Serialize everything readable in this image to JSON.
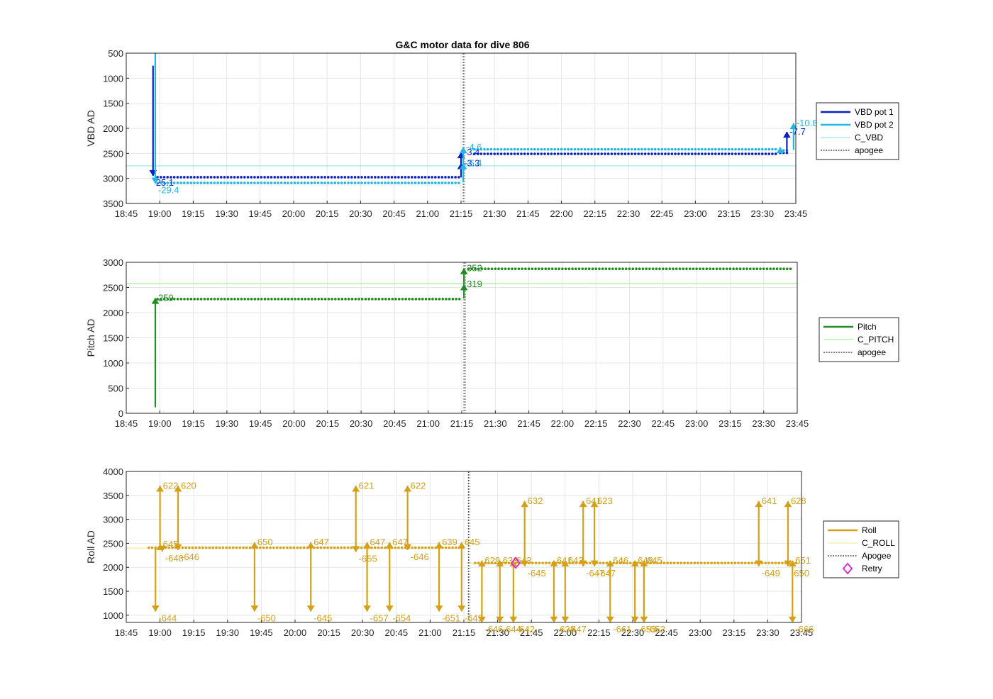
{
  "figure": {
    "title": "G&C motor data for dive 806"
  },
  "colors": {
    "vbd1": "#0a1fc4",
    "vbd2": "#1fb8e6",
    "c_vbd": "#7ee0ea",
    "pitch": "#228b22",
    "c_pitch": "#90e890",
    "roll": "#d4a017",
    "c_roll": "#f2e88a",
    "apogee": "#555555",
    "retry": "#e01ee0",
    "grid": "#e6e6e6"
  },
  "chart_data": [
    {
      "type": "line",
      "ylabel": "VBD AD",
      "ylim": [
        500,
        3500
      ],
      "y_reversed": true,
      "yticks": [
        500,
        1000,
        1500,
        2000,
        2500,
        3000,
        3500
      ],
      "xlim": [
        "18:45",
        "23:45"
      ],
      "xticks": [
        "18:45",
        "19:00",
        "19:15",
        "19:30",
        "19:45",
        "20:00",
        "20:15",
        "20:30",
        "20:45",
        "21:00",
        "21:15",
        "21:30",
        "21:45",
        "22:00",
        "22:15",
        "22:30",
        "22:45",
        "23:00",
        "23:15",
        "23:30",
        "23:45"
      ],
      "legend": {
        "position": "right",
        "entries": [
          {
            "label": "VBD pot 1",
            "style": "thick",
            "color": "#0a1fc4"
          },
          {
            "label": "VBD pot 2",
            "style": "thick",
            "color": "#1fb8e6"
          },
          {
            "label": "C_VBD",
            "style": "thin",
            "color": "#7ee0ea"
          },
          {
            "label": "apogee",
            "style": "dotted",
            "color": "#555555"
          }
        ]
      },
      "reference_lines": [
        {
          "name": "C_VBD",
          "y": 2750
        }
      ],
      "apogee": "21:16",
      "series": [
        {
          "name": "VBD pot 1",
          "color": "#0a1fc4",
          "segments": [
            {
              "start": "18:59",
              "end": "21:15",
              "y": 2975
            },
            {
              "start": "21:21",
              "end": "23:37",
              "y": 2510
            },
            {
              "start": "23:38",
              "end": "23:42",
              "y": 2490
            }
          ]
        },
        {
          "name": "VBD pot 2",
          "color": "#1fb8e6",
          "segments": [
            {
              "start": "18:59",
              "end": "21:15",
              "y": 3090
            },
            {
              "start": "21:21",
              "end": "23:37",
              "y": 2420
            },
            {
              "start": "23:38",
              "end": "23:42",
              "y": 2440
            }
          ]
        }
      ],
      "moves": [
        {
          "series": "VBD pot 1",
          "time": "18:57",
          "from": 750,
          "to": 2950,
          "label": "25.1"
        },
        {
          "series": "VBD pot 2",
          "time": "18:58",
          "from": 500,
          "to": 3100,
          "label": "-29.4"
        },
        {
          "series": "VBD pot 1",
          "time": "21:15",
          "from": 2980,
          "to": 2700,
          "label": "-3.3"
        },
        {
          "series": "VBD pot 1",
          "time": "21:15",
          "from": 2700,
          "to": 2480,
          "label": "-3.4"
        },
        {
          "series": "VBD pot 2",
          "time": "21:16",
          "from": 3080,
          "to": 2700,
          "label": "-5.4"
        },
        {
          "series": "VBD pot 2",
          "time": "21:16",
          "from": 2700,
          "to": 2380,
          "label": "-4.6"
        },
        {
          "series": "VBD pot 1",
          "time": "23:41",
          "from": 2500,
          "to": 2070,
          "label": "-7.7"
        },
        {
          "series": "VBD pot 2",
          "time": "23:38",
          "from": 2490,
          "to": 2380,
          "label": ""
        },
        {
          "series": "VBD pot 2",
          "time": "23:44",
          "from": 2430,
          "to": 1900,
          "label": "-10.8"
        }
      ]
    },
    {
      "type": "line",
      "ylabel": "Pitch AD",
      "ylim": [
        0,
        3000
      ],
      "yticks": [
        0,
        500,
        1000,
        1500,
        2000,
        2500,
        3000
      ],
      "xlim": [
        "18:45",
        "23:45"
      ],
      "xticks": [
        "18:45",
        "19:00",
        "19:15",
        "19:30",
        "19:45",
        "20:00",
        "20:15",
        "20:30",
        "20:45",
        "21:00",
        "21:15",
        "21:30",
        "21:45",
        "22:00",
        "22:15",
        "22:30",
        "22:45",
        "23:00",
        "23:15",
        "23:30",
        "23:45"
      ],
      "legend": {
        "position": "right",
        "entries": [
          {
            "label": "Pitch",
            "style": "thick",
            "color": "#228b22"
          },
          {
            "label": "C_PITCH",
            "style": "thin",
            "color": "#90e890"
          },
          {
            "label": "apogee",
            "style": "dotted",
            "color": "#555555"
          }
        ]
      },
      "reference_lines": [
        {
          "name": "C_PITCH",
          "y": 2580
        }
      ],
      "apogee": "21:16",
      "series": [
        {
          "name": "Pitch",
          "color": "#228b22",
          "segments": [
            {
              "start": "18:59",
              "end": "21:15",
              "y": 2270
            },
            {
              "start": "21:18",
              "end": "23:42",
              "y": 2870
            }
          ]
        }
      ],
      "moves": [
        {
          "series": "Pitch",
          "time": "18:58",
          "from": 120,
          "to": 2290,
          "label": "259"
        },
        {
          "series": "Pitch",
          "time": "21:16",
          "from": 2280,
          "to": 2560,
          "label": "319"
        },
        {
          "series": "Pitch",
          "time": "21:16",
          "from": 2560,
          "to": 2880,
          "label": "352"
        }
      ]
    },
    {
      "type": "line",
      "ylabel": "Roll AD",
      "ylim": [
        850,
        4000
      ],
      "yticks": [
        1000,
        1500,
        2000,
        2500,
        3000,
        3500,
        4000
      ],
      "xlim": [
        "18:45",
        "23:45"
      ],
      "xticks": [
        "18:45",
        "19:00",
        "19:15",
        "19:30",
        "19:45",
        "20:00",
        "20:15",
        "20:30",
        "20:45",
        "21:00",
        "21:15",
        "21:30",
        "21:45",
        "22:00",
        "22:15",
        "22:30",
        "22:45",
        "23:00",
        "23:15",
        "23:30",
        "23:45"
      ],
      "legend": {
        "position": "right",
        "entries": [
          {
            "label": "Roll",
            "style": "thick",
            "color": "#d4a017"
          },
          {
            "label": "C_ROLL",
            "style": "thin",
            "color": "#f2e88a"
          },
          {
            "label": "Apogee",
            "style": "dotted",
            "color": "#555555"
          },
          {
            "label": "Retry",
            "style": "diamond",
            "color": "#e01ee0"
          }
        ]
      },
      "reference_segments": [
        {
          "name": "C_ROLL",
          "start": "18:45",
          "end": "21:16",
          "y": 2400
        },
        {
          "name": "C_ROLL",
          "start": "21:16",
          "end": "23:45",
          "y": 2090
        }
      ],
      "apogee": "21:17",
      "series": [
        {
          "name": "Roll",
          "color": "#d4a017",
          "segments": [
            {
              "start": "18:55",
              "end": "21:15",
              "y": 2410
            },
            {
              "start": "21:20",
              "end": "23:43",
              "y": 2090
            }
          ]
        }
      ],
      "retry": [
        {
          "time": "21:38",
          "y": 2090
        }
      ],
      "moves": [
        {
          "time": "18:58",
          "from": 2400,
          "to": 1080,
          "label": "-644",
          "lpos": "end"
        },
        {
          "time": "19:00",
          "from": 2400,
          "to": 3700,
          "label": "622",
          "lpos": "end"
        },
        {
          "time": "19:00",
          "from": 2400,
          "to": 2480,
          "label": "645",
          "lpos": "end"
        },
        {
          "time": "19:01",
          "from": 2400,
          "to": 2330,
          "label": "-648",
          "lpos": "end"
        },
        {
          "time": "19:08",
          "from": 2420,
          "to": 3700,
          "label": "620",
          "lpos": "end"
        },
        {
          "time": "19:08",
          "from": 2420,
          "to": 2360,
          "label": "-646",
          "lpos": "end"
        },
        {
          "time": "19:42",
          "from": 2420,
          "to": 1080,
          "label": "-650",
          "lpos": "end"
        },
        {
          "time": "19:42",
          "from": 2420,
          "to": 2520,
          "label": "650",
          "lpos": "end"
        },
        {
          "time": "20:07",
          "from": 2420,
          "to": 1080,
          "label": "-645",
          "lpos": "end"
        },
        {
          "time": "20:07",
          "from": 2420,
          "to": 2520,
          "label": "647",
          "lpos": "end"
        },
        {
          "time": "20:27",
          "from": 2420,
          "to": 3700,
          "label": "621",
          "lpos": "end"
        },
        {
          "time": "20:27",
          "from": 2420,
          "to": 2320,
          "label": "-655",
          "lpos": "end"
        },
        {
          "time": "20:32",
          "from": 2420,
          "to": 1080,
          "label": "-657",
          "lpos": "end"
        },
        {
          "time": "20:32",
          "from": 2420,
          "to": 2520,
          "label": "647",
          "lpos": "end"
        },
        {
          "time": "20:42",
          "from": 2420,
          "to": 1080,
          "label": "-654",
          "lpos": "end"
        },
        {
          "time": "20:42",
          "from": 2420,
          "to": 2520,
          "label": "647",
          "lpos": "end"
        },
        {
          "time": "20:50",
          "from": 2420,
          "to": 3700,
          "label": "622",
          "lpos": "end"
        },
        {
          "time": "20:50",
          "from": 2420,
          "to": 2360,
          "label": "-646",
          "lpos": "end"
        },
        {
          "time": "21:04",
          "from": 2420,
          "to": 1080,
          "label": "-651",
          "lpos": "end"
        },
        {
          "time": "21:04",
          "from": 2420,
          "to": 2520,
          "label": "639",
          "lpos": "end"
        },
        {
          "time": "21:14",
          "from": 2420,
          "to": 1080,
          "label": "-645",
          "lpos": "end"
        },
        {
          "time": "21:14",
          "from": 2420,
          "to": 2520,
          "label": "645",
          "lpos": "end"
        },
        {
          "time": "21:23",
          "from": 2090,
          "to": 850,
          "label": "-646",
          "lpos": "end"
        },
        {
          "time": "21:23",
          "from": 2090,
          "to": 2140,
          "label": "629",
          "lpos": "end"
        },
        {
          "time": "21:31",
          "from": 2090,
          "to": 850,
          "label": "-644",
          "lpos": "end"
        },
        {
          "time": "21:31",
          "from": 2090,
          "to": 2140,
          "label": "633",
          "lpos": "end"
        },
        {
          "time": "21:37",
          "from": 2090,
          "to": 850,
          "label": "-642",
          "lpos": "end"
        },
        {
          "time": "21:37",
          "from": 2090,
          "to": 2140,
          "label": "643",
          "lpos": "end"
        },
        {
          "time": "21:42",
          "from": 2090,
          "to": 3380,
          "label": "632",
          "lpos": "end"
        },
        {
          "time": "21:42",
          "from": 2090,
          "to": 2020,
          "label": "-645",
          "lpos": "end"
        },
        {
          "time": "21:55",
          "from": 2090,
          "to": 850,
          "label": "-638",
          "lpos": "end"
        },
        {
          "time": "21:55",
          "from": 2090,
          "to": 2140,
          "label": "641",
          "lpos": "end"
        },
        {
          "time": "22:00",
          "from": 2090,
          "to": 850,
          "label": "-647",
          "lpos": "end"
        },
        {
          "time": "22:00",
          "from": 2090,
          "to": 2140,
          "label": "643",
          "lpos": "end"
        },
        {
          "time": "22:08",
          "from": 2090,
          "to": 3380,
          "label": "641",
          "lpos": "end"
        },
        {
          "time": "22:08",
          "from": 2090,
          "to": 2020,
          "label": "-647",
          "lpos": "end"
        },
        {
          "time": "22:13",
          "from": 2090,
          "to": 3380,
          "label": "623",
          "lpos": "end"
        },
        {
          "time": "22:13",
          "from": 2090,
          "to": 2020,
          "label": "-647",
          "lpos": "end"
        },
        {
          "time": "22:20",
          "from": 2090,
          "to": 850,
          "label": "-661",
          "lpos": "end"
        },
        {
          "time": "22:20",
          "from": 2090,
          "to": 2140,
          "label": "646",
          "lpos": "end"
        },
        {
          "time": "22:31",
          "from": 2090,
          "to": 850,
          "label": "-653",
          "lpos": "end"
        },
        {
          "time": "22:31",
          "from": 2090,
          "to": 2140,
          "label": "648",
          "lpos": "end"
        },
        {
          "time": "22:35",
          "from": 2090,
          "to": 850,
          "label": "-652",
          "lpos": "end"
        },
        {
          "time": "22:35",
          "from": 2090,
          "to": 2140,
          "label": "645",
          "lpos": "end"
        },
        {
          "time": "23:26",
          "from": 2090,
          "to": 3380,
          "label": "641",
          "lpos": "end"
        },
        {
          "time": "23:26",
          "from": 2090,
          "to": 2020,
          "label": "-649",
          "lpos": "end"
        },
        {
          "time": "23:39",
          "from": 2090,
          "to": 3380,
          "label": "628",
          "lpos": "end"
        },
        {
          "time": "23:39",
          "from": 2090,
          "to": 2020,
          "label": "-650",
          "lpos": "end"
        },
        {
          "time": "23:41",
          "from": 2090,
          "to": 850,
          "label": "-666",
          "lpos": "end"
        },
        {
          "time": "23:41",
          "from": 2090,
          "to": 2140,
          "label": "651",
          "lpos": "end"
        }
      ]
    }
  ]
}
